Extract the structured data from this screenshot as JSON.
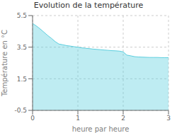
{
  "chart_data": {
    "type": "area",
    "title": "Evolution de la température",
    "xlabel": "heure par heure",
    "ylabel": "Température en °C",
    "x": [
      0,
      0.08,
      0.17,
      0.25,
      0.33,
      0.42,
      0.5,
      0.58,
      0.67,
      0.75,
      0.83,
      0.92,
      1.0,
      1.08,
      1.17,
      1.25,
      1.33,
      1.42,
      1.5,
      1.58,
      1.67,
      1.75,
      1.83,
      1.92,
      2.0,
      2.08,
      2.17,
      2.25,
      2.33,
      2.42,
      2.5,
      2.58,
      2.67,
      2.75,
      2.83,
      2.92,
      3.0
    ],
    "values": [
      5.0,
      4.85,
      4.65,
      4.45,
      4.25,
      4.05,
      3.85,
      3.7,
      3.65,
      3.6,
      3.57,
      3.53,
      3.5,
      3.46,
      3.43,
      3.41,
      3.38,
      3.36,
      3.34,
      3.32,
      3.3,
      3.28,
      3.27,
      3.25,
      3.2,
      3.0,
      2.95,
      2.9,
      2.88,
      2.87,
      2.86,
      2.85,
      2.85,
      2.85,
      2.84,
      2.84,
      2.84
    ],
    "xlim": [
      0,
      3
    ],
    "ylim": [
      -0.5,
      5.5
    ],
    "xticks": [
      0,
      1,
      2,
      3
    ],
    "yticks": [
      -0.5,
      1.5,
      3.5,
      5.5
    ],
    "grid": true,
    "color": "#5DCFDF"
  }
}
